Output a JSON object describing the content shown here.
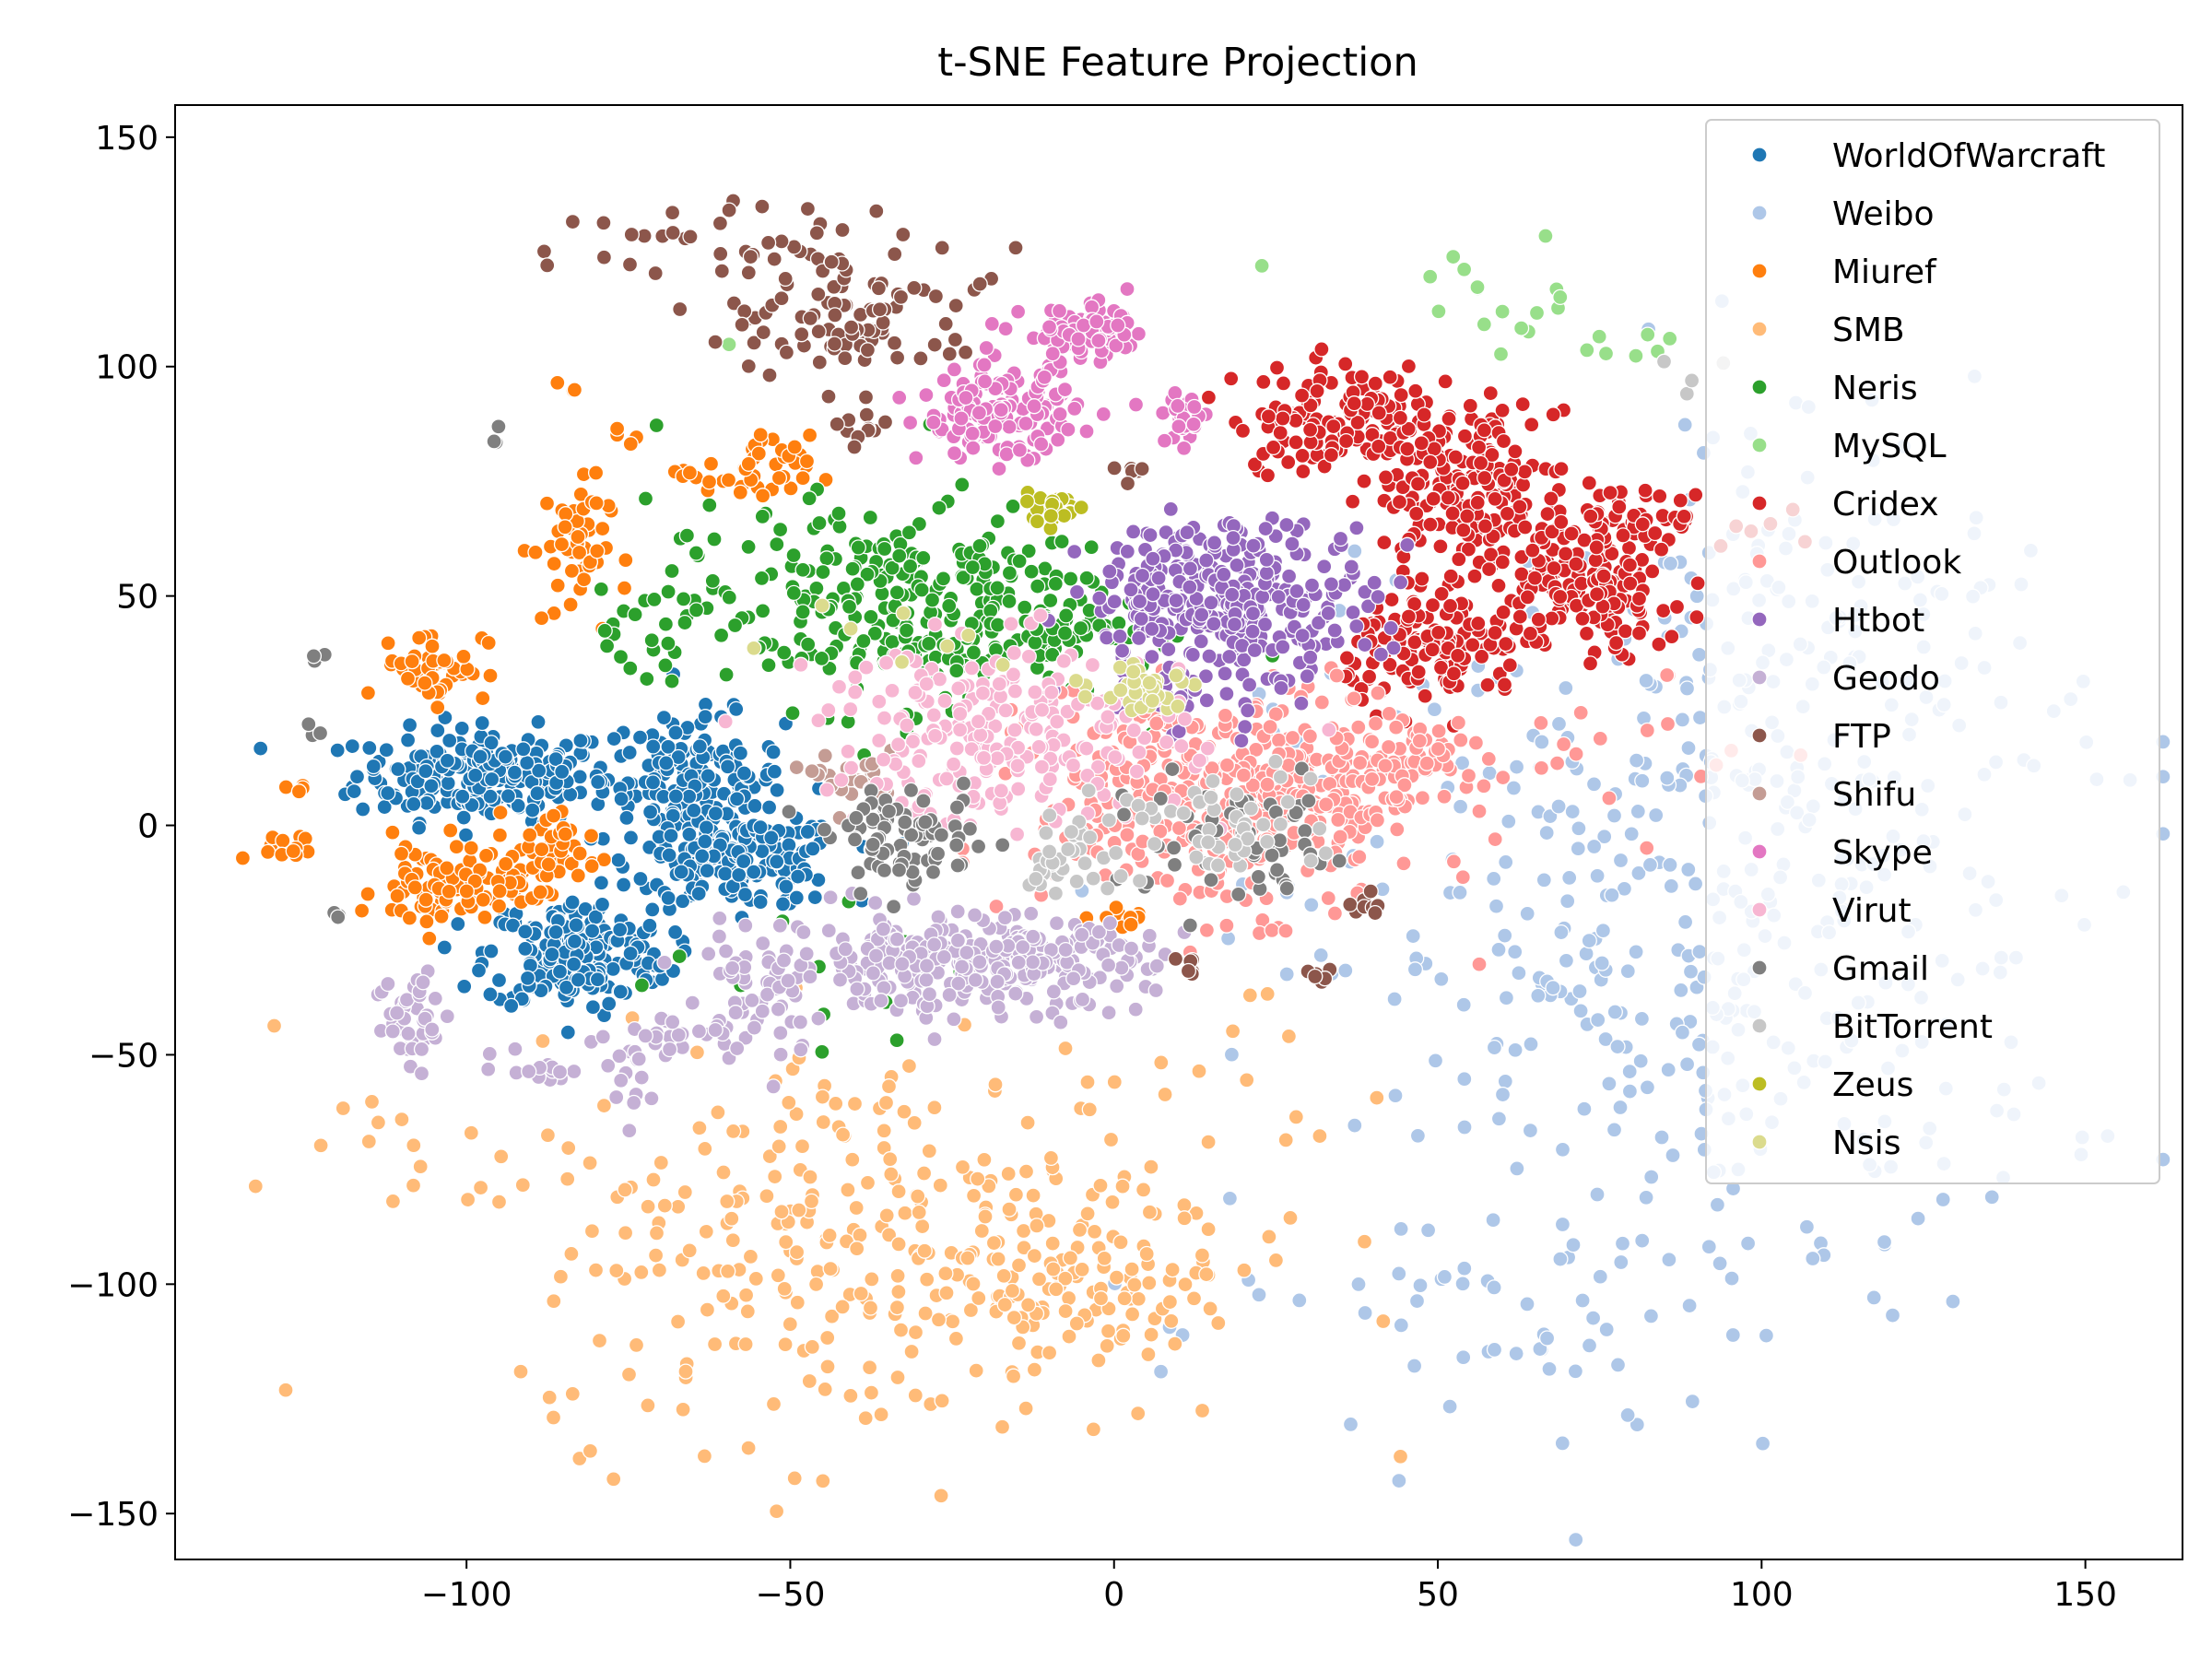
{
  "chart_data": {
    "type": "scatter",
    "title": "t-SNE Feature Projection",
    "xlabel": "",
    "ylabel": "",
    "xlim": [
      -145,
      165
    ],
    "ylim": [
      -160,
      157
    ],
    "xticks": [
      -100,
      -50,
      0,
      50,
      100,
      150
    ],
    "yticks": [
      -150,
      -100,
      -50,
      0,
      50,
      100,
      150
    ],
    "xtick_labels": [
      "−100",
      "−50",
      "0",
      "50",
      "100",
      "150"
    ],
    "ytick_labels": [
      "−150",
      "−100",
      "−50",
      "0",
      "50",
      "100",
      "150"
    ],
    "grid": false,
    "legend_position": "top-right",
    "series": [
      {
        "name": "WorldOfWarcraft",
        "color": "#1f77b4",
        "clusters": [
          {
            "cx": -97,
            "cy": 11,
            "sx": 10,
            "sy": 5,
            "n": 220
          },
          {
            "cx": -65,
            "cy": 10,
            "sx": 7,
            "sy": 7,
            "n": 150
          },
          {
            "cx": -58,
            "cy": -8,
            "sx": 8,
            "sy": 5,
            "n": 170
          },
          {
            "cx": -83,
            "cy": -28,
            "sx": 7,
            "sy": 6,
            "n": 190
          }
        ]
      },
      {
        "name": "Weibo",
        "color": "#aec7e8",
        "clusters": [
          {
            "cx": 85,
            "cy": -30,
            "sx": 30,
            "sy": 40,
            "n": 380
          },
          {
            "cx": 110,
            "cy": 20,
            "sx": 20,
            "sy": 30,
            "n": 120
          },
          {
            "cx": 100,
            "cy": 60,
            "sx": 15,
            "sy": 20,
            "n": 40
          },
          {
            "cx": 60,
            "cy": -110,
            "sx": 20,
            "sy": 15,
            "n": 40
          }
        ]
      },
      {
        "name": "Miuref",
        "color": "#ff7f0e",
        "clusters": [
          {
            "cx": -104,
            "cy": -14,
            "sx": 5,
            "sy": 5,
            "n": 70
          },
          {
            "cx": -92,
            "cy": -10,
            "sx": 6,
            "sy": 3,
            "n": 50
          },
          {
            "cx": -105,
            "cy": 35,
            "sx": 4,
            "sy": 4,
            "n": 50
          },
          {
            "cx": -84,
            "cy": 60,
            "sx": 3,
            "sy": 8,
            "n": 50
          },
          {
            "cx": -55,
            "cy": 77,
            "sx": 4,
            "sy": 4,
            "n": 40
          },
          {
            "cx": -87,
            "cy": -2,
            "sx": 3,
            "sy": 3,
            "n": 20
          },
          {
            "cx": -128,
            "cy": -5,
            "sx": 4,
            "sy": 1.5,
            "n": 12
          },
          {
            "cx": -126,
            "cy": 8,
            "sx": 1,
            "sy": 1,
            "n": 4
          },
          {
            "cx": 3,
            "cy": -20,
            "sx": 3,
            "sy": 1,
            "n": 12
          },
          {
            "cx": -67,
            "cy": 77,
            "sx": 1,
            "sy": 1,
            "n": 4
          },
          {
            "cx": -84,
            "cy": 95,
            "sx": 0.8,
            "sy": 0.8,
            "n": 3
          },
          {
            "cx": -76,
            "cy": 85,
            "sx": 1,
            "sy": 1,
            "n": 4
          }
        ]
      },
      {
        "name": "SMB",
        "color": "#ffbb78",
        "clusters": [
          {
            "cx": -35,
            "cy": -90,
            "sx": 28,
            "sy": 22,
            "n": 330
          },
          {
            "cx": -5,
            "cy": -102,
            "sx": 10,
            "sy": 6,
            "n": 60
          },
          {
            "cx": -110,
            "cy": -70,
            "sx": 12,
            "sy": 8,
            "n": 15
          },
          {
            "cx": 20,
            "cy": -60,
            "sx": 12,
            "sy": 15,
            "n": 15
          }
        ]
      },
      {
        "name": "Neris",
        "color": "#2ca02c",
        "clusters": [
          {
            "cx": -35,
            "cy": 48,
            "sx": 18,
            "sy": 11,
            "n": 300
          },
          {
            "cx": -10,
            "cy": 45,
            "sx": 6,
            "sy": 6,
            "n": 40
          },
          {
            "cx": -75,
            "cy": 38,
            "sx": 4,
            "sy": 4,
            "n": 15
          },
          {
            "cx": -40,
            "cy": -30,
            "sx": 15,
            "sy": 10,
            "n": 12
          }
        ]
      },
      {
        "name": "MySQL",
        "color": "#98df8a",
        "clusters": [
          {
            "cx": 62,
            "cy": 115,
            "sx": 7,
            "sy": 6,
            "n": 16
          },
          {
            "cx": 78,
            "cy": 104,
            "sx": 5,
            "sy": 5,
            "n": 7
          },
          {
            "cx": 23,
            "cy": 122,
            "sx": 0.5,
            "sy": 0.5,
            "n": 1
          },
          {
            "cx": -60,
            "cy": 104,
            "sx": 0.5,
            "sy": 0.5,
            "n": 1
          }
        ]
      },
      {
        "name": "Cridex",
        "color": "#d62728",
        "clusters": [
          {
            "cx": 36,
            "cy": 89,
            "sx": 9,
            "sy": 6,
            "n": 150
          },
          {
            "cx": 53,
            "cy": 70,
            "sx": 6,
            "sy": 9,
            "n": 130
          },
          {
            "cx": 50,
            "cy": 38,
            "sx": 7,
            "sy": 6,
            "n": 130
          },
          {
            "cx": 72,
            "cy": 50,
            "sx": 8,
            "sy": 7,
            "n": 140
          },
          {
            "cx": 78,
            "cy": 67,
            "sx": 9,
            "sy": 3,
            "n": 70
          },
          {
            "cx": 60,
            "cy": 80,
            "sx": 4,
            "sy": 5,
            "n": 40
          }
        ]
      },
      {
        "name": "Outlook",
        "color": "#ff9896",
        "clusters": [
          {
            "cx": 18,
            "cy": 6,
            "sx": 15,
            "sy": 12,
            "n": 420
          },
          {
            "cx": 45,
            "cy": 12,
            "sx": 5,
            "sy": 5,
            "n": 60
          },
          {
            "cx": 75,
            "cy": 15,
            "sx": 15,
            "sy": 8,
            "n": 20
          }
        ]
      },
      {
        "name": "Htbot",
        "color": "#9467bd",
        "clusters": [
          {
            "cx": 18,
            "cy": 50,
            "sx": 11,
            "sy": 8,
            "n": 320
          },
          {
            "cx": 10,
            "cy": 28,
            "sx": 8,
            "sy": 5,
            "n": 30
          }
        ]
      },
      {
        "name": "Geodo",
        "color": "#c5b0d5",
        "clusters": [
          {
            "cx": -23,
            "cy": -30,
            "sx": 14,
            "sy": 5,
            "n": 320
          },
          {
            "cx": -55,
            "cy": -36,
            "sx": 6,
            "sy": 8,
            "n": 60
          },
          {
            "cx": -108,
            "cy": -42,
            "sx": 3,
            "sy": 6,
            "n": 40
          },
          {
            "cx": -68,
            "cy": -45,
            "sx": 5,
            "sy": 2,
            "n": 20
          },
          {
            "cx": -88,
            "cy": -53,
            "sx": 4,
            "sy": 1.5,
            "n": 15
          },
          {
            "cx": -75,
            "cy": -53,
            "sx": 2,
            "sy": 4,
            "n": 15
          }
        ]
      },
      {
        "name": "FTP",
        "color": "#8c564b",
        "clusters": [
          {
            "cx": -40,
            "cy": 112,
            "sx": 10,
            "sy": 8,
            "n": 95
          },
          {
            "cx": -60,
            "cy": 125,
            "sx": 18,
            "sy": 7,
            "n": 35
          },
          {
            "cx": -38,
            "cy": 87,
            "sx": 2,
            "sy": 3,
            "n": 12
          },
          {
            "cx": 2,
            "cy": 76,
            "sx": 1.5,
            "sy": 1.5,
            "n": 6
          },
          {
            "cx": 40,
            "cy": -17,
            "sx": 2,
            "sy": 1,
            "n": 8
          },
          {
            "cx": 11,
            "cy": -32,
            "sx": 1.5,
            "sy": 1.5,
            "n": 6
          },
          {
            "cx": 32,
            "cy": -33,
            "sx": 1.5,
            "sy": 1.5,
            "n": 6
          }
        ]
      },
      {
        "name": "Shifu",
        "color": "#c49c94",
        "clusters": [
          {
            "cx": -40,
            "cy": 10,
            "sx": 3,
            "sy": 3,
            "n": 25
          }
        ]
      },
      {
        "name": "Skype",
        "color": "#e377c2",
        "clusters": [
          {
            "cx": -18,
            "cy": 90,
            "sx": 6,
            "sy": 5,
            "n": 150
          },
          {
            "cx": -4,
            "cy": 107,
            "sx": 5,
            "sy": 3,
            "n": 90
          },
          {
            "cx": 11,
            "cy": 89,
            "sx": 1.5,
            "sy": 3,
            "n": 25
          }
        ]
      },
      {
        "name": "Virut",
        "color": "#f7b6d2",
        "clusters": [
          {
            "cx": -17,
            "cy": 20,
            "sx": 14,
            "sy": 10,
            "n": 230
          }
        ]
      },
      {
        "name": "Gmail",
        "color": "#7f7f7f",
        "clusters": [
          {
            "cx": -32,
            "cy": -3,
            "sx": 6,
            "sy": 5,
            "n": 80
          },
          {
            "cx": 20,
            "cy": -5,
            "sx": 10,
            "sy": 7,
            "n": 60
          },
          {
            "cx": -120,
            "cy": -20,
            "sx": 0.8,
            "sy": 0.8,
            "n": 3
          },
          {
            "cx": -124,
            "cy": 20,
            "sx": 0.8,
            "sy": 0.8,
            "n": 3
          },
          {
            "cx": -123,
            "cy": 37,
            "sx": 0.8,
            "sy": 0.8,
            "n": 3
          },
          {
            "cx": -95,
            "cy": 85,
            "sx": 0.8,
            "sy": 0.8,
            "n": 3
          }
        ]
      },
      {
        "name": "BitTorrent",
        "color": "#c7c7c7",
        "clusters": [
          {
            "cx": -8,
            "cy": -6,
            "sx": 4,
            "sy": 5,
            "n": 30
          },
          {
            "cx": 15,
            "cy": 0,
            "sx": 8,
            "sy": 6,
            "n": 50
          },
          {
            "cx": 90,
            "cy": 100,
            "sx": 5,
            "sy": 5,
            "n": 4
          }
        ]
      },
      {
        "name": "Zeus",
        "color": "#bcbd22",
        "clusters": [
          {
            "cx": -10,
            "cy": 69,
            "sx": 3,
            "sy": 1.5,
            "n": 25
          }
        ]
      },
      {
        "name": "Nsis",
        "color": "#dbdb8d",
        "clusters": [
          {
            "cx": 5,
            "cy": 30,
            "sx": 4,
            "sy": 3,
            "n": 35
          },
          {
            "cx": -30,
            "cy": 45,
            "sx": 10,
            "sy": 5,
            "n": 8
          }
        ]
      }
    ]
  }
}
